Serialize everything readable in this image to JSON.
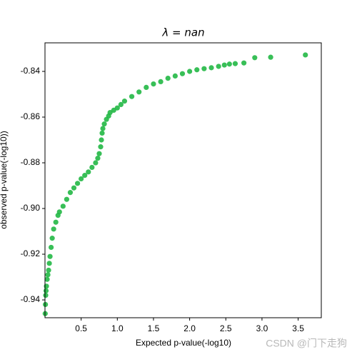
{
  "chart_data": {
    "type": "scatter",
    "title": "λ = nan",
    "x_label": "Expected p-value(-log10)",
    "y_label": "observed p-value(-log10))",
    "color": "#22b845",
    "x": [
      0.003,
      0.006,
      0.01,
      0.015,
      0.02,
      0.03,
      0.04,
      0.05,
      0.06,
      0.07,
      0.085,
      0.1,
      0.12,
      0.15,
      0.18,
      0.2,
      0.25,
      0.3,
      0.35,
      0.4,
      0.45,
      0.5,
      0.55,
      0.6,
      0.65,
      0.7,
      0.73,
      0.75,
      0.77,
      0.78,
      0.79,
      0.8,
      0.82,
      0.85,
      0.88,
      0.9,
      0.95,
      1.0,
      1.05,
      1.1,
      1.2,
      1.3,
      1.4,
      1.5,
      1.6,
      1.7,
      1.8,
      1.9,
      2.0,
      2.1,
      2.2,
      2.3,
      2.4,
      2.48,
      2.55,
      2.63,
      2.75,
      2.9,
      3.12,
      3.6
    ],
    "values": [
      -0.946,
      -0.942,
      -0.938,
      -0.936,
      -0.934,
      -0.931,
      -0.929,
      -0.927,
      -0.924,
      -0.921,
      -0.917,
      -0.913,
      -0.909,
      -0.906,
      -0.903,
      -0.9015,
      -0.899,
      -0.896,
      -0.893,
      -0.891,
      -0.889,
      -0.887,
      -0.8855,
      -0.884,
      -0.882,
      -0.88,
      -0.878,
      -0.876,
      -0.873,
      -0.87,
      -0.867,
      -0.865,
      -0.863,
      -0.861,
      -0.8595,
      -0.858,
      -0.857,
      -0.856,
      -0.8545,
      -0.853,
      -0.851,
      -0.849,
      -0.847,
      -0.8455,
      -0.8445,
      -0.843,
      -0.842,
      -0.841,
      -0.84,
      -0.8393,
      -0.8388,
      -0.8384,
      -0.8378,
      -0.8372,
      -0.8368,
      -0.8366,
      -0.8363,
      -0.834,
      -0.8338,
      -0.8328
    ],
    "xlim": [
      0,
      3.82
    ],
    "ylim": [
      -0.9478,
      -0.8275
    ],
    "xticks": [
      0.5,
      {
        "value": 1.0,
        "label": "1.0"
      },
      1.5,
      {
        "value": 2.0,
        "label": "2.0"
      },
      2.5,
      {
        "value": 3.0,
        "label": "3.0"
      },
      3.5
    ],
    "yticks": [
      -0.84,
      -0.86,
      -0.88,
      {
        "value": -0.9,
        "label": "-0.90"
      },
      -0.92,
      -0.94
    ],
    "watermark": "CSDN @门下走狗"
  }
}
